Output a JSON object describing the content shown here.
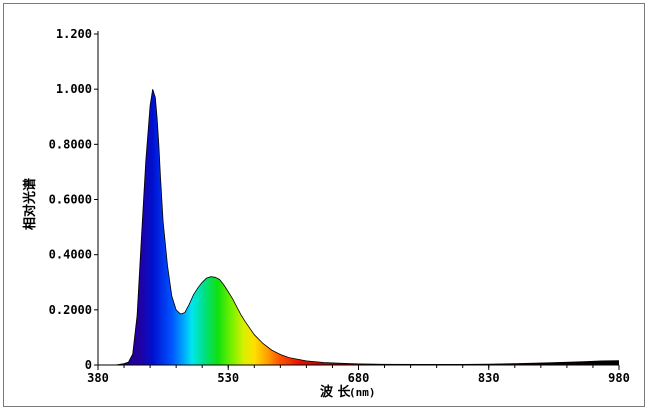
{
  "chart_data": {
    "type": "area",
    "title": "",
    "xlabel": "波 长",
    "xunit": "(nm)",
    "ylabel": "相对光谱",
    "xlim": [
      380,
      980
    ],
    "ylim": [
      0,
      1.2
    ],
    "x_ticks": [
      380,
      530,
      680,
      830,
      980
    ],
    "x_tick_labels": [
      "380",
      "530",
      "680",
      "830",
      "980"
    ],
    "y_ticks": [
      0,
      0.2,
      0.4,
      0.6,
      0.8,
      1.0,
      1.2
    ],
    "y_tick_labels": [
      "0",
      "0.2000",
      "0.4000",
      "0.6000",
      "0.8000",
      "1.000",
      "1.200"
    ],
    "grid": false,
    "series": [
      {
        "fill": "visible-spectrum-gradient",
        "x": [
          380,
          400,
          410,
          415,
          420,
          425,
          430,
          435,
          440,
          443,
          446,
          448,
          450,
          452,
          455,
          460,
          465,
          470,
          475,
          480,
          485,
          490,
          495,
          500,
          505,
          510,
          515,
          520,
          525,
          530,
          535,
          540,
          545,
          550,
          560,
          570,
          580,
          590,
          600,
          620,
          640,
          660,
          680,
          700,
          750,
          800,
          830,
          860,
          900,
          940,
          960,
          980
        ],
        "y": [
          0.0,
          0.0,
          0.005,
          0.01,
          0.04,
          0.18,
          0.46,
          0.74,
          0.94,
          1.0,
          0.97,
          0.9,
          0.8,
          0.68,
          0.52,
          0.36,
          0.25,
          0.2,
          0.185,
          0.19,
          0.22,
          0.255,
          0.28,
          0.3,
          0.315,
          0.32,
          0.318,
          0.31,
          0.29,
          0.265,
          0.24,
          0.21,
          0.18,
          0.155,
          0.11,
          0.078,
          0.054,
          0.038,
          0.027,
          0.015,
          0.009,
          0.006,
          0.004,
          0.003,
          0.002,
          0.002,
          0.003,
          0.005,
          0.008,
          0.012,
          0.015,
          0.016
        ]
      }
    ]
  },
  "colors": {
    "axis": "#000000",
    "frame_border": "#7a7a7a",
    "outline": "#000000"
  }
}
